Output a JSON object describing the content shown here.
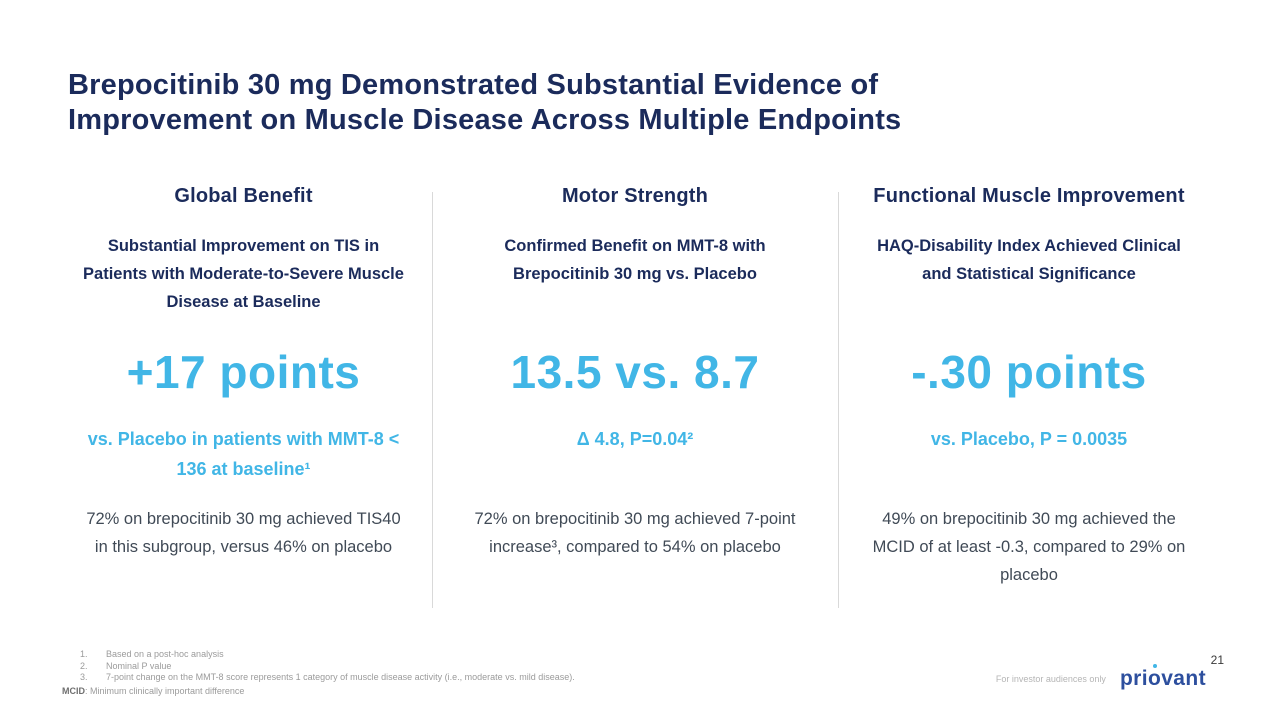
{
  "slide": {
    "title_lines": [
      "Brepocitinib 30 mg Demonstrated Substantial Evidence of",
      "Improvement on Muscle Disease Across Multiple Endpoints"
    ]
  },
  "columns": [
    {
      "header": "Global Benefit",
      "subheader": "Substantial Improvement on TIS in Patients with Moderate-to-Severe Muscle Disease at Baseline",
      "stat": "+17 points",
      "highlight": "vs. Placebo in patients with MMT-8 < 136 at baseline¹",
      "body": "72% on brepocitinib 30 mg achieved TIS40 in this subgroup, versus 46% on placebo"
    },
    {
      "header": "Motor Strength",
      "subheader": "Confirmed Benefit on MMT-8 with Brepocitinib 30 mg vs. Placebo",
      "stat": "13.5 vs. 8.7",
      "highlight": "Δ 4.8, P=0.04²",
      "body": "72% on brepocitinib 30 mg achieved 7-point increase³, compared to 54% on placebo"
    },
    {
      "header": "Functional Muscle Improvement",
      "subheader": "HAQ-Disability Index Achieved Clinical and Statistical Significance",
      "stat": "-.30 points",
      "highlight": "vs. Placebo, P = 0.0035",
      "body": "49% on brepocitinib 30 mg achieved the MCID of at least -0.3, compared to 29% on placebo"
    }
  ],
  "footnotes": [
    {
      "num": "1.",
      "text": "Based on a post-hoc analysis"
    },
    {
      "num": "2.",
      "text": "Nominal P value"
    },
    {
      "num": "3.",
      "text": "7-point change on the MMT-8 score represents 1 category of muscle disease activity (i.e., moderate vs. mild disease)."
    }
  ],
  "mcid_note": {
    "label": "MCID",
    "text": ": Minimum clinically important difference"
  },
  "footer": {
    "audience_note": "For investor audiences only",
    "logo": {
      "pre": "pri",
      "o": "o",
      "post": "vant"
    },
    "page_number": "21"
  },
  "colors": {
    "title_navy": "#1b2b5b",
    "accent_cyan": "#41b6e6",
    "body_text": "#404a56",
    "footnote_gray": "#9b9b9b",
    "logo_blue": "#2d4f9e",
    "divider_gray": "#d9d9d9"
  }
}
